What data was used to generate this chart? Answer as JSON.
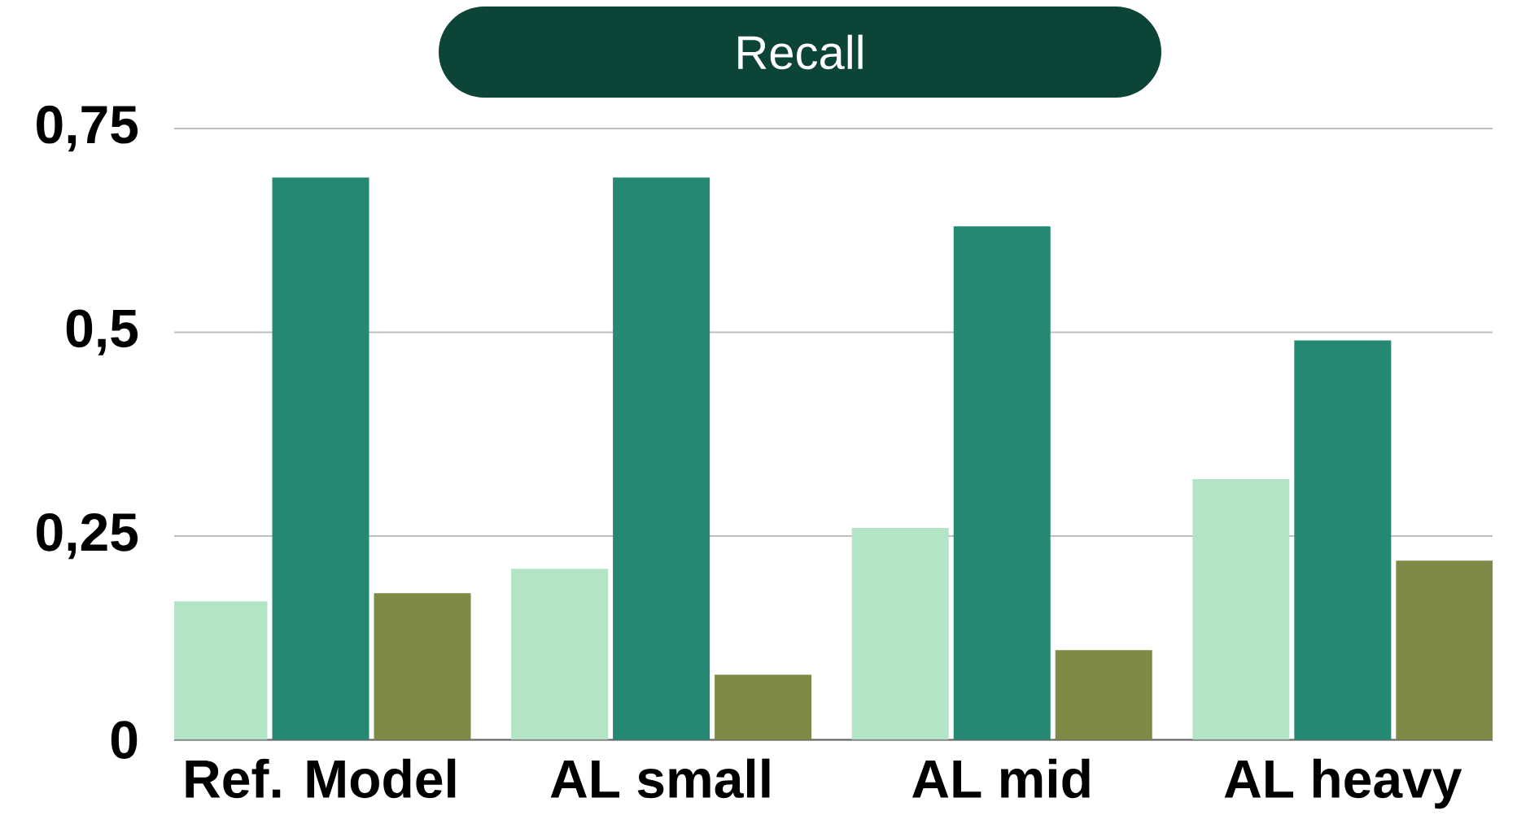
{
  "chart_data": {
    "type": "bar",
    "title": "Recall",
    "categories": [
      "Ref. Model",
      "AL small",
      "AL mid",
      "AL heavy"
    ],
    "series": [
      {
        "color": "#b3e4c6",
        "values": [
          0.17,
          0.21,
          0.26,
          0.32
        ]
      },
      {
        "color": "#258873",
        "values": [
          0.69,
          0.69,
          0.63,
          0.49
        ]
      },
      {
        "color": "#7e8a46",
        "values": [
          0.18,
          0.08,
          0.11,
          0.22
        ]
      }
    ],
    "ylim": [
      0,
      0.75
    ],
    "yticks": [
      0,
      {
        "value": 0.25,
        "label": "0,25"
      },
      {
        "value": 0.5,
        "label": "0,5"
      },
      {
        "value": 0.75,
        "label": "0,75"
      }
    ],
    "grid": "y"
  }
}
